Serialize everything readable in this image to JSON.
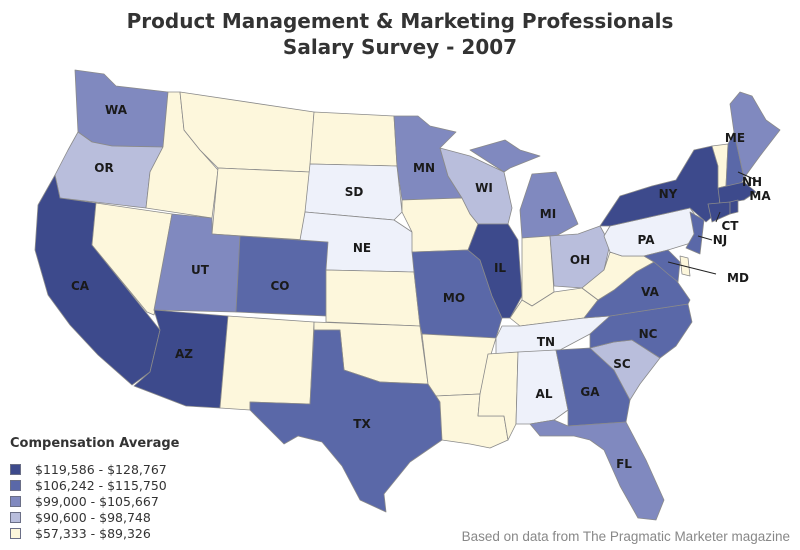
{
  "title": {
    "line1": "Product Management & Marketing Professionals",
    "line2": "Salary Survey - 2007"
  },
  "legend": {
    "title": "Compensation Average",
    "items": [
      {
        "label": "$119,586 - $128,767",
        "color": "#3d4a8c"
      },
      {
        "label": "$106,242 - $115,750",
        "color": "#5a68a8"
      },
      {
        "label": "$99,000 - $105,667",
        "color": "#8089bf"
      },
      {
        "label": "$90,600 - $98,748",
        "color": "#b9bedc"
      },
      {
        "label": "$57,333 - $89,326",
        "color": "#fdf7dc"
      }
    ]
  },
  "extra_colors": {
    "light_blue": "#eef1fa"
  },
  "states": {
    "WA": "WA",
    "OR": "OR",
    "CA": "CA",
    "AZ": "AZ",
    "UT": "UT",
    "CO": "CO",
    "SD": "SD",
    "NE": "NE",
    "MN": "MN",
    "WI": "WI",
    "MI": "MI",
    "IL": "IL",
    "MO": "MO",
    "TX": "TX",
    "OH": "OH",
    "PA": "PA",
    "NY": "NY",
    "ME": "ME",
    "NH": "NH",
    "MA": "MA",
    "CT": "CT",
    "NJ": "NJ",
    "MD": "MD",
    "VA": "VA",
    "NC": "NC",
    "SC": "SC",
    "TN": "TN",
    "GA": "GA",
    "AL": "AL",
    "FL": "FL"
  },
  "footer": "Based on data from The Pragmatic Marketer magazine"
}
